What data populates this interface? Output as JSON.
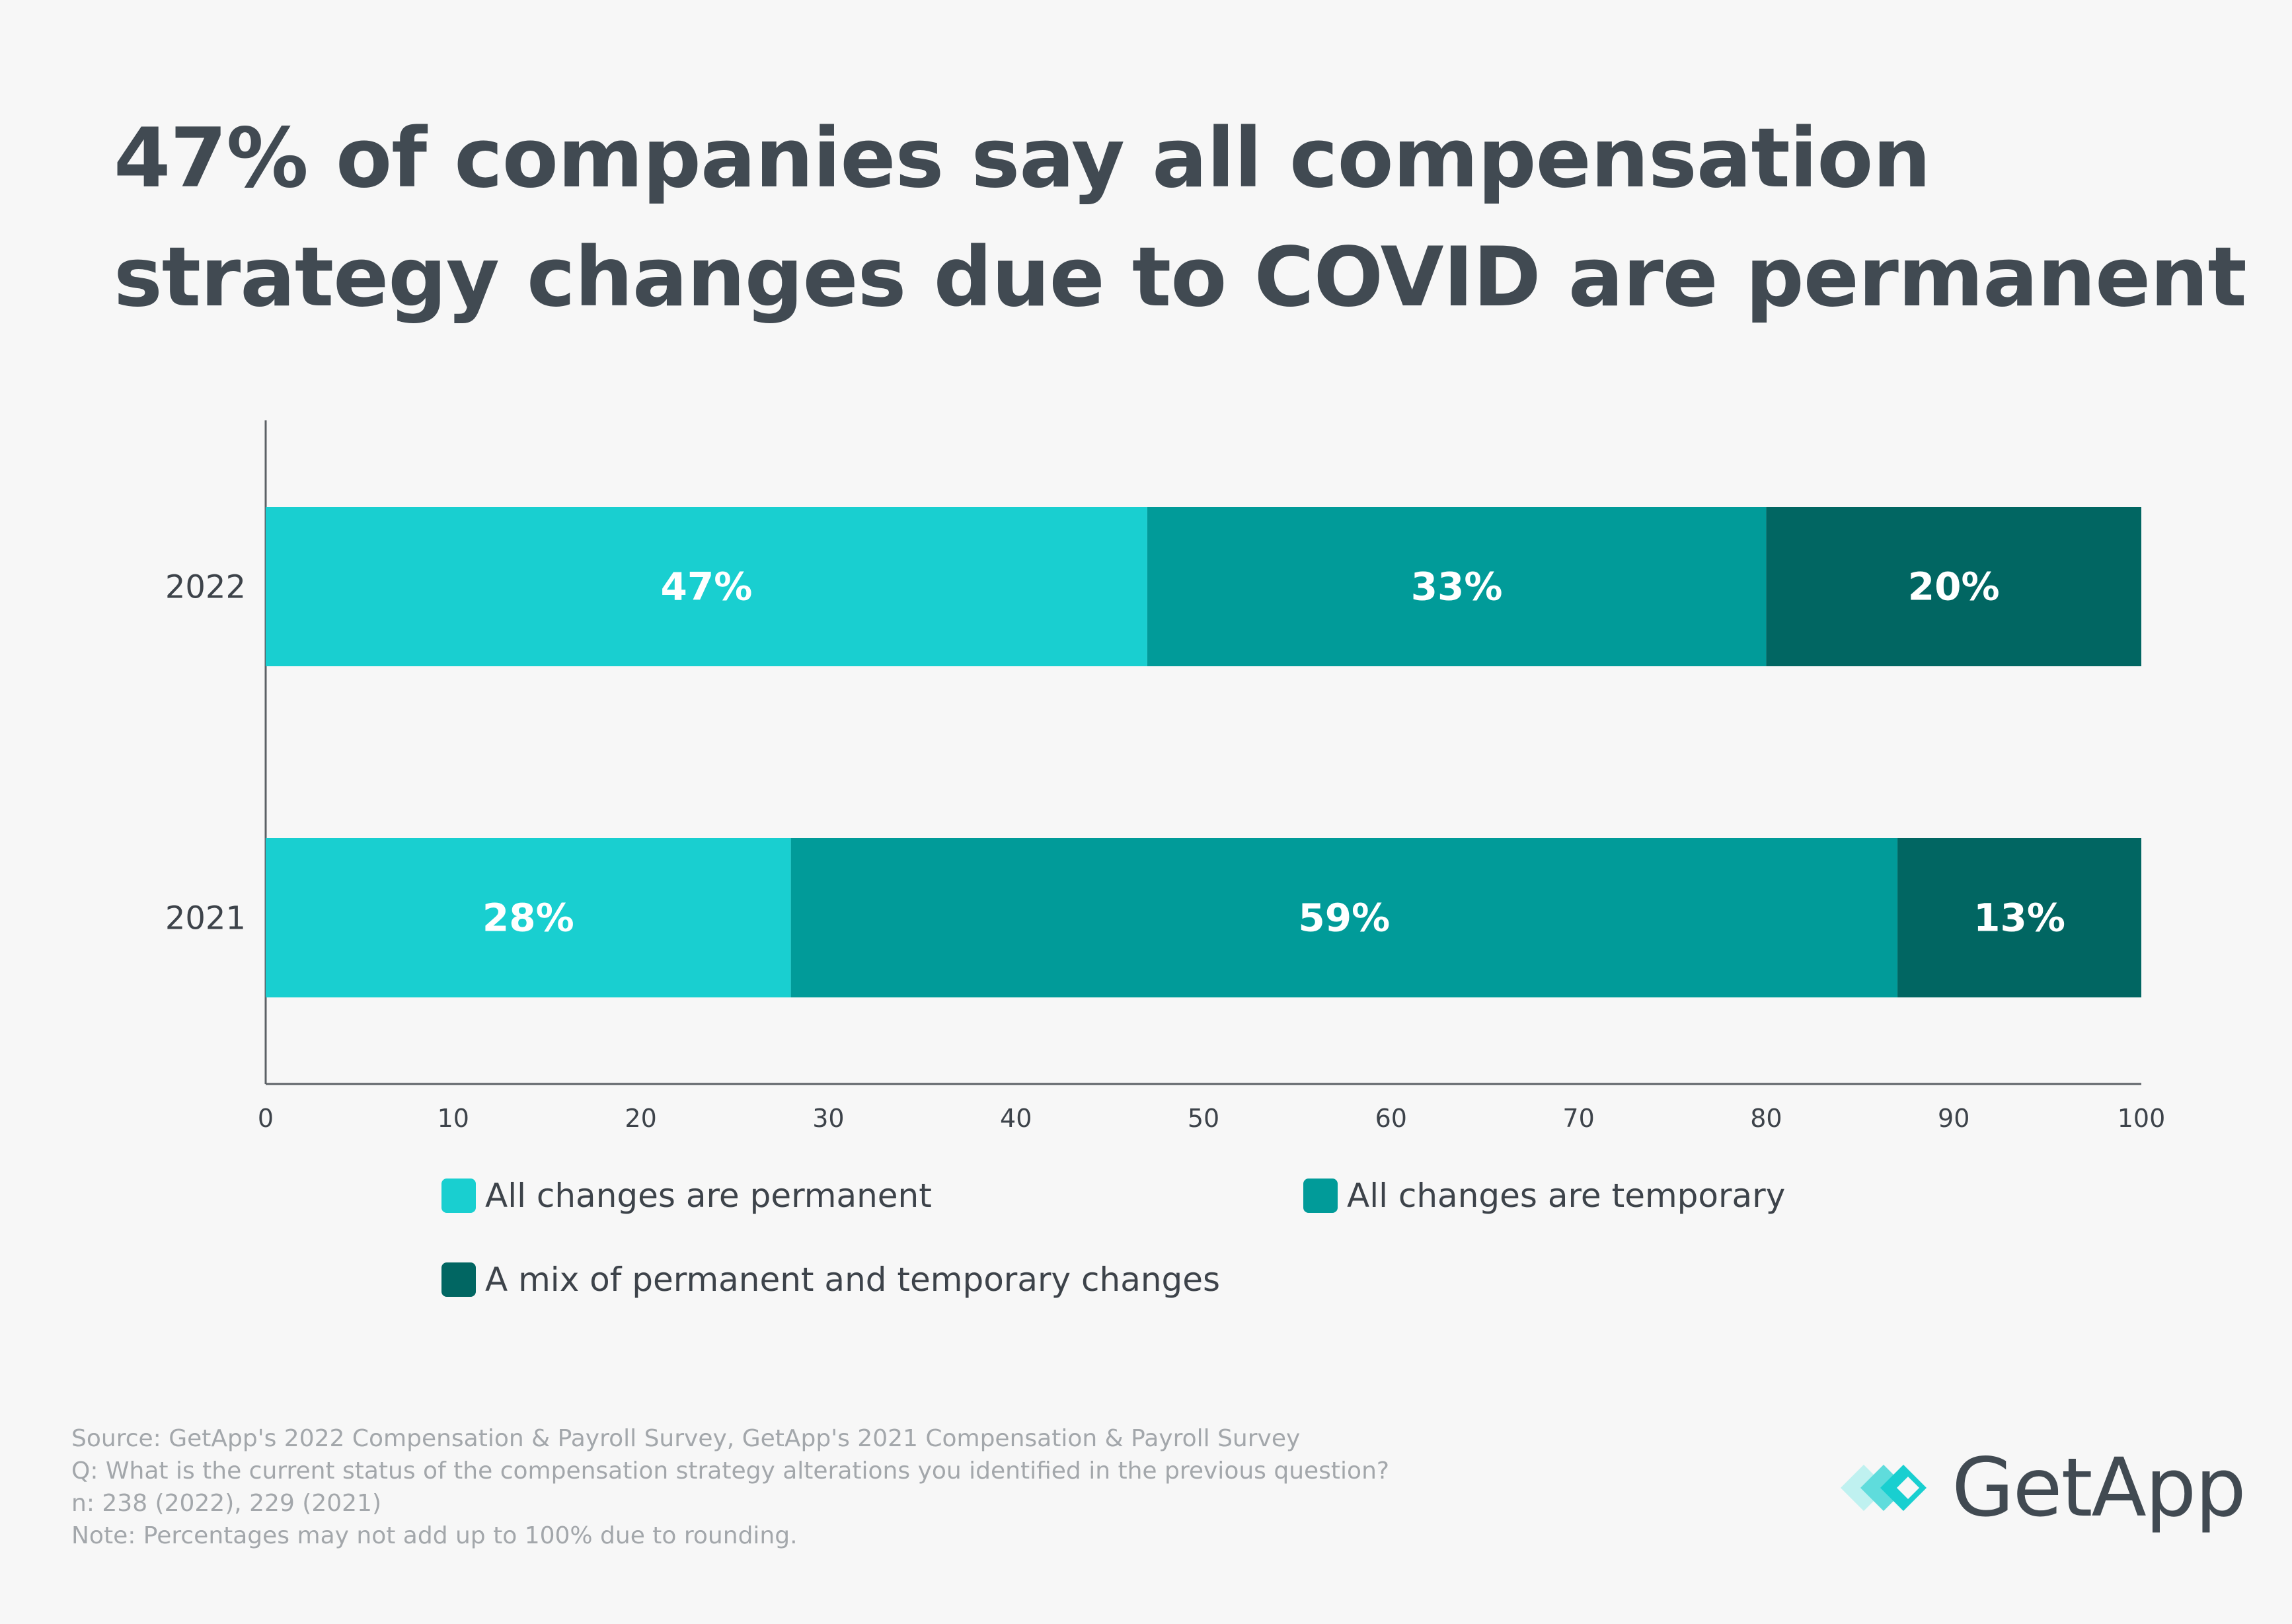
{
  "title_lines": [
    "47% of companies say all compensation",
    "strategy changes due to COVID are permanent"
  ],
  "chart_data": {
    "type": "bar",
    "orientation": "horizontal",
    "stacked": true,
    "categories": [
      "2022",
      "2021"
    ],
    "series": [
      {
        "name": "All changes are permanent",
        "color": "#19cfd0",
        "values": [
          47,
          28
        ],
        "labels": [
          "47%",
          "28%"
        ]
      },
      {
        "name": "All changes are temporary",
        "color": "#019b99",
        "values": [
          33,
          59
        ],
        "labels": [
          "33%",
          "59%"
        ]
      },
      {
        "name": "A mix of permanent and temporary changes",
        "color": "#016662",
        "values": [
          20,
          13
        ],
        "labels": [
          "20%",
          "13%"
        ]
      }
    ],
    "xlim": [
      0,
      100
    ],
    "xticks": [
      "0",
      "10",
      "20",
      "30",
      "40",
      "50",
      "60",
      "70",
      "80",
      "90",
      "100"
    ],
    "legend_position": "bottom"
  },
  "legend": [
    {
      "label": "All changes are permanent",
      "color": "#19cfd0"
    },
    {
      "label": "All changes are temporary",
      "color": "#019b99"
    },
    {
      "label": "A mix of permanent and temporary changes",
      "color": "#016662"
    }
  ],
  "footnotes": [
    "Source: GetApp's 2022 Compensation & Payroll Survey, GetApp's 2021 Compensation & Payroll Survey",
    "Q: What is the current status of the compensation strategy alterations you identified in the previous question?",
    "n: 238 (2022), 229 (2021)",
    "Note: Percentages may not add up to 100% due to rounding."
  ],
  "logo": {
    "text": "GetApp"
  }
}
